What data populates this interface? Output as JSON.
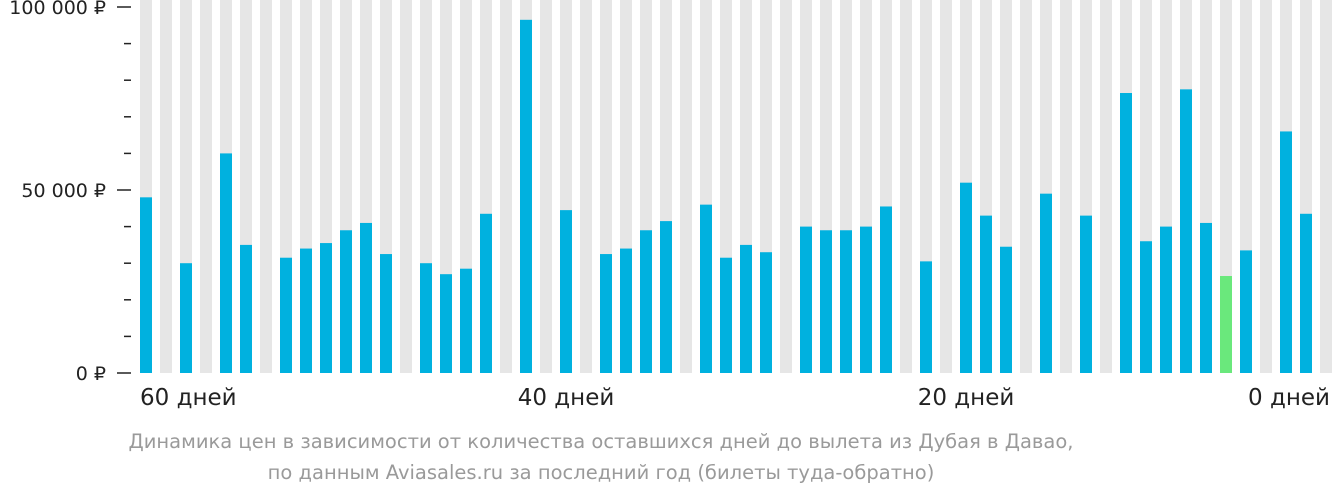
{
  "chart_data": {
    "type": "bar",
    "x_label_texts": [
      "60 дней",
      "40 дней",
      "20 дней",
      "0 дней"
    ],
    "x_label_days": [
      60,
      40,
      20,
      0
    ],
    "y_ticks": [
      {
        "value": 100000,
        "label": "100 000 ₽"
      },
      {
        "value": 50000,
        "label": "50 000 ₽"
      },
      {
        "value": 0,
        "label": "0 ₽"
      }
    ],
    "ylim": [
      0,
      100000
    ],
    "minor_tick_step": 10000,
    "days_before_departure": [
      59,
      58,
      57,
      56,
      55,
      54,
      53,
      52,
      51,
      50,
      49,
      48,
      47,
      46,
      45,
      44,
      43,
      42,
      41,
      40,
      39,
      38,
      37,
      36,
      35,
      34,
      33,
      32,
      31,
      30,
      29,
      28,
      27,
      26,
      25,
      24,
      23,
      22,
      21,
      20,
      19,
      18,
      17,
      16,
      15,
      14,
      13,
      12,
      11,
      10,
      9,
      8,
      7,
      6,
      5,
      4,
      3,
      2,
      1,
      0
    ],
    "values": [
      48000,
      null,
      30000,
      null,
      60000,
      35000,
      null,
      31500,
      34000,
      35500,
      39000,
      41000,
      32500,
      null,
      30000,
      27000,
      28500,
      43500,
      null,
      96500,
      null,
      44500,
      null,
      32500,
      34000,
      39000,
      41500,
      null,
      46000,
      31500,
      35000,
      33000,
      null,
      40000,
      39000,
      39000,
      40000,
      45500,
      null,
      30500,
      null,
      52000,
      43000,
      34500,
      null,
      49000,
      null,
      43000,
      null,
      76500,
      36000,
      40000,
      77500,
      41000,
      26500,
      33500,
      null,
      66000,
      43500,
      null
    ],
    "highlight_index": 54,
    "colors": {
      "bar": "#00b1df",
      "highlight": "#6ae87c",
      "column_bg": "#e6e6e6",
      "axis": "#222222",
      "caption": "#9a9a9a"
    }
  },
  "caption": {
    "line1": "Динамика цен в зависимости от количества оставшихся дней до вылета из Дубая в Давао,",
    "line2": "по данным Aviasales.ru за последний год (билеты туда-обратно)"
  }
}
